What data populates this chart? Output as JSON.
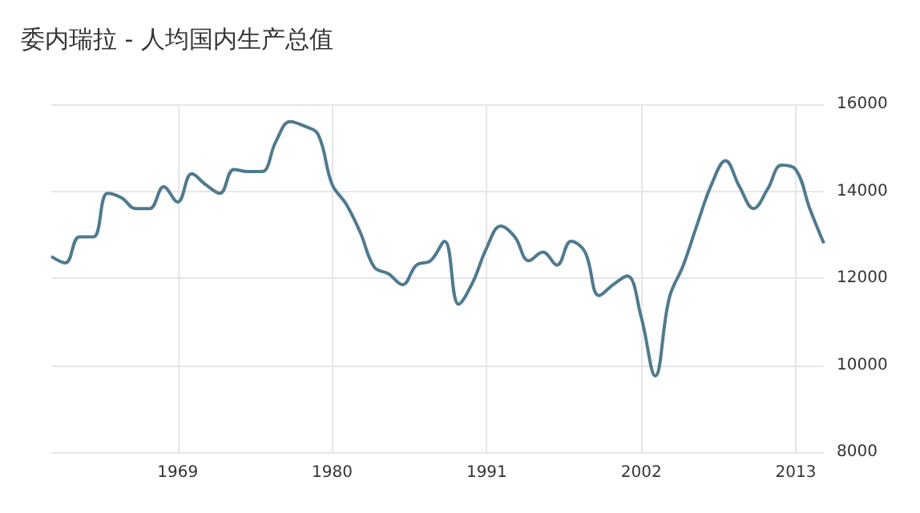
{
  "chart_data": {
    "type": "line",
    "title": "委内瑞拉 - 人均国内生产总值",
    "x": [
      1960,
      1961,
      1962,
      1963,
      1964,
      1965,
      1966,
      1967,
      1968,
      1969,
      1970,
      1971,
      1972,
      1973,
      1974,
      1975,
      1976,
      1977,
      1978,
      1979,
      1980,
      1981,
      1982,
      1983,
      1984,
      1985,
      1986,
      1987,
      1988,
      1989,
      1990,
      1991,
      1992,
      1993,
      1994,
      1995,
      1996,
      1997,
      1998,
      1999,
      2000,
      2001,
      2002,
      2003,
      2004,
      2005,
      2006,
      2007,
      2008,
      2009,
      2010,
      2011,
      2012,
      2013,
      2014,
      2015
    ],
    "series": [
      {
        "color": "#4f7a8f",
        "values": [
          12500,
          12350,
          12950,
          12950,
          13950,
          13850,
          13600,
          13600,
          14100,
          13750,
          14400,
          14150,
          13950,
          14500,
          14450,
          14450,
          15150,
          15600,
          15500,
          15300,
          14150,
          13700,
          13050,
          12250,
          12100,
          11850,
          12300,
          12400,
          12850,
          11400,
          11900,
          12700,
          13200,
          12950,
          12400,
          12600,
          12300,
          12850,
          12600,
          11600,
          11850,
          12050,
          11100,
          9750,
          11550,
          12300,
          13250,
          14150,
          14700,
          14100,
          13600,
          14050,
          14600,
          14500,
          13600,
          12800
        ]
      }
    ],
    "xlim": [
      1960,
      2015
    ],
    "xticks": [
      1969,
      1980,
      1991,
      2002,
      2013
    ],
    "ylim": [
      8000,
      16000
    ],
    "yticks": [
      8000,
      10000,
      12000,
      14000,
      16000
    ],
    "grid": true,
    "marker": "none",
    "line_style": "solid"
  }
}
